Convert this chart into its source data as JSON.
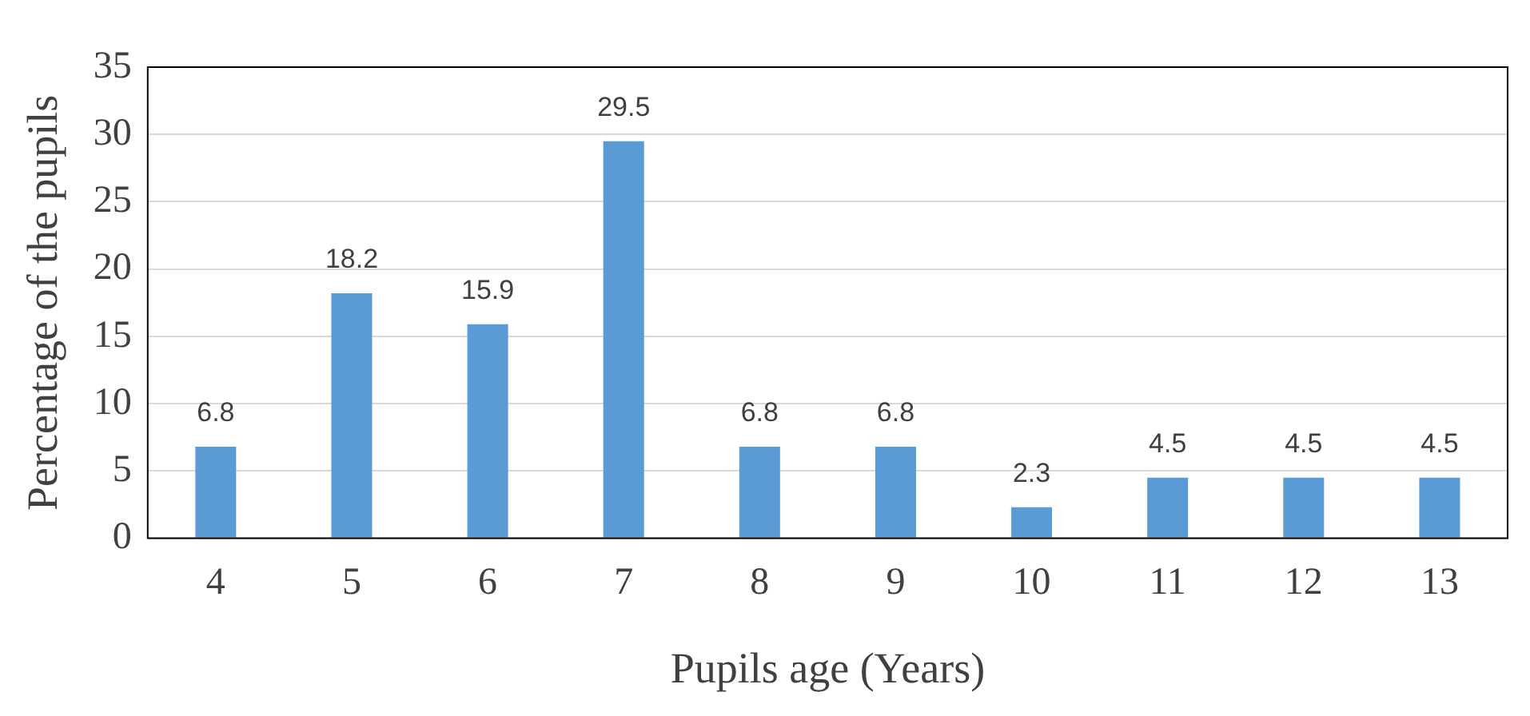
{
  "chart_data": {
    "type": "bar",
    "xlabel": "Pupils age (Years)",
    "ylabel": "Percentage of the pupils",
    "categories": [
      "4",
      "5",
      "6",
      "7",
      "8",
      "9",
      "10",
      "11",
      "12",
      "13"
    ],
    "values": [
      6.8,
      18.2,
      15.9,
      29.5,
      6.8,
      6.8,
      2.3,
      4.5,
      4.5,
      4.5
    ],
    "color": "#5b9bd5",
    "ylim": [
      0,
      35
    ],
    "yticks": [
      0,
      5,
      10,
      15,
      20,
      25,
      30,
      35
    ],
    "grid": "y",
    "legend": false,
    "data_labels": true
  }
}
